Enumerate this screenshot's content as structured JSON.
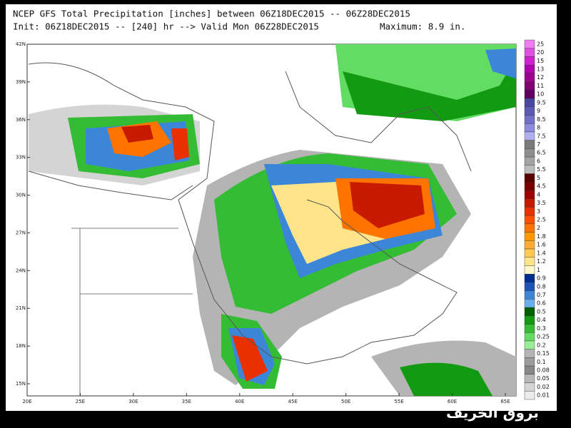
{
  "header": {
    "line1": "NCEP GFS Total Precipitation [inches] between 06Z18DEC2015 -- 06Z28DEC2015",
    "line2": "Init: 06Z18DEC2015 -- [240] hr --> Valid Mon 06Z28DEC2015",
    "maximum": "Maximum: 8.9 in."
  },
  "map": {
    "lat_labels": [
      "42N",
      "39N",
      "36N",
      "33N",
      "30N",
      "27N",
      "24N",
      "21N",
      "18N",
      "15N"
    ],
    "lon_labels": [
      "20E",
      "25E",
      "30E",
      "35E",
      "40E",
      "45E",
      "50E",
      "55E",
      "60E",
      "65E"
    ]
  },
  "legend": {
    "entries": [
      {
        "label": "25",
        "color": "#f07cf0"
      },
      {
        "label": "20",
        "color": "#e050e0"
      },
      {
        "label": "15",
        "color": "#d020d0"
      },
      {
        "label": "13",
        "color": "#b000b0"
      },
      {
        "label": "12",
        "color": "#a00090"
      },
      {
        "label": "11",
        "color": "#800070"
      },
      {
        "label": "10",
        "color": "#600060"
      },
      {
        "label": "9.5",
        "color": "#4848a0"
      },
      {
        "label": "9",
        "color": "#5a5ab4"
      },
      {
        "label": "8.5",
        "color": "#7070c8"
      },
      {
        "label": "8",
        "color": "#8c8cdc"
      },
      {
        "label": "7.5",
        "color": "#b0b0ee"
      },
      {
        "label": "7",
        "color": "#7a7a7a"
      },
      {
        "label": "6.5",
        "color": "#8e8e8e"
      },
      {
        "label": "6",
        "color": "#a4a4a4"
      },
      {
        "label": "5.5",
        "color": "#bcbcbc"
      },
      {
        "label": "5",
        "color": "#5a0000"
      },
      {
        "label": "4.5",
        "color": "#7a0000"
      },
      {
        "label": "4",
        "color": "#a00000"
      },
      {
        "label": "3.5",
        "color": "#c81a00"
      },
      {
        "label": "3",
        "color": "#e83000"
      },
      {
        "label": "2.5",
        "color": "#ff5000"
      },
      {
        "label": "2",
        "color": "#ff7400"
      },
      {
        "label": "1.8",
        "color": "#ff9800"
      },
      {
        "label": "1.6",
        "color": "#ffac30"
      },
      {
        "label": "1.4",
        "color": "#ffc850"
      },
      {
        "label": "1.2",
        "color": "#ffe48a"
      },
      {
        "label": "1",
        "color": "#fff8c8"
      },
      {
        "label": "0.9",
        "color": "#002e90"
      },
      {
        "label": "0.8",
        "color": "#1e54b8"
      },
      {
        "label": "0.7",
        "color": "#3c86d8"
      },
      {
        "label": "0.6",
        "color": "#6aaeee"
      },
      {
        "label": "0.5",
        "color": "#006000"
      },
      {
        "label": "0.4",
        "color": "#129a12"
      },
      {
        "label": "0.3",
        "color": "#34bc34"
      },
      {
        "label": "0.25",
        "color": "#62dc62"
      },
      {
        "label": "0.2",
        "color": "#98ee98"
      },
      {
        "label": "0.15",
        "color": "#b4b4b4"
      },
      {
        "label": "0.1",
        "color": "#9c9c9c"
      },
      {
        "label": "0.08",
        "color": "#888888"
      },
      {
        "label": "0.05",
        "color": "#b8b8b8"
      },
      {
        "label": "0.02",
        "color": "#d4d4d4"
      },
      {
        "label": "0.01",
        "color": "#ececec"
      }
    ]
  },
  "watermark": "بروق الخريف"
}
